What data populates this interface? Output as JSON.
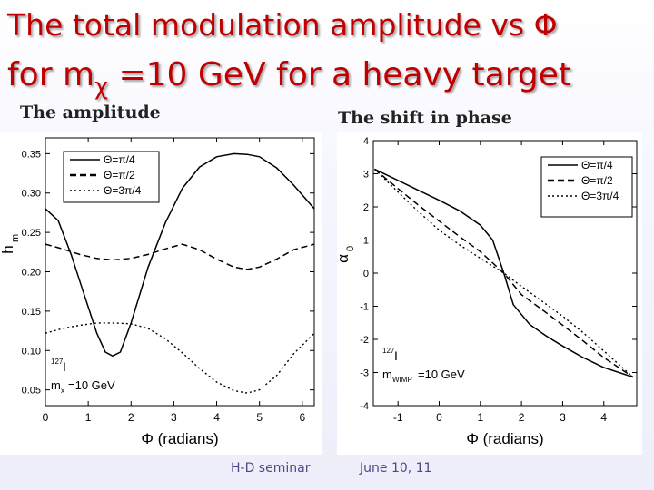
{
  "slide": {
    "title_line1": "The total modulation amplitude vs Φ",
    "title_line2_pre": "for  m",
    "title_line2_sub": "χ",
    "title_line2_post": " =10 GeV for a heavy target",
    "caption_left": "The amplitude",
    "caption_right": "The shift in phase",
    "footer_left": "H-D seminar",
    "footer_right": "June 10, 11",
    "colors": {
      "title": "#c00000",
      "curve": "#000000"
    }
  },
  "chart_data": [
    {
      "type": "line",
      "title": "The amplitude",
      "xlabel": "Φ (radians)",
      "ylabel": "h",
      "ylabel_sub": "m",
      "xlim": [
        0,
        6.28
      ],
      "ylim": [
        0.03,
        0.37
      ],
      "xticks": [
        0,
        1,
        2,
        3,
        4,
        5,
        6
      ],
      "yticks": [
        0.05,
        0.1,
        0.15,
        0.2,
        0.25,
        0.3,
        0.35
      ],
      "ytick_labels": [
        "0.05",
        "0.10",
        "0.15",
        "0.20",
        "0.25",
        "0.30",
        "0.35"
      ],
      "annotation_line1": "127",
      "annotation_line1_suffix": "I",
      "annotation_line2": "m",
      "annotation_line2_sub": "x",
      "annotation_line2_suffix": "=10 GeV",
      "legend": [
        "Θ=π/4",
        "Θ=π/2",
        "Θ=3π/4"
      ],
      "series": [
        {
          "name": "Θ=π/4",
          "style": "solid",
          "x": [
            0,
            0.3,
            0.6,
            0.9,
            1.2,
            1.4,
            1.571,
            1.75,
            2.0,
            2.4,
            2.8,
            3.2,
            3.6,
            4.0,
            4.4,
            4.712,
            5.0,
            5.4,
            5.8,
            6.283
          ],
          "y": [
            0.28,
            0.265,
            0.222,
            0.172,
            0.122,
            0.098,
            0.093,
            0.098,
            0.135,
            0.206,
            0.262,
            0.306,
            0.333,
            0.346,
            0.35,
            0.349,
            0.346,
            0.332,
            0.31,
            0.28
          ]
        },
        {
          "name": "Θ=π/2",
          "style": "dashed",
          "x": [
            0,
            0.4,
            0.8,
            1.2,
            1.571,
            2.0,
            2.4,
            2.8,
            3.2,
            3.6,
            4.0,
            4.4,
            4.712,
            5.0,
            5.4,
            5.8,
            6.283
          ],
          "y": [
            0.235,
            0.229,
            0.222,
            0.217,
            0.215,
            0.217,
            0.222,
            0.229,
            0.235,
            0.228,
            0.216,
            0.206,
            0.203,
            0.206,
            0.216,
            0.228,
            0.235
          ]
        },
        {
          "name": "Θ=3π/4",
          "style": "dotted",
          "x": [
            0,
            0.4,
            0.8,
            1.2,
            1.571,
            2.0,
            2.4,
            2.8,
            3.2,
            3.6,
            4.0,
            4.4,
            4.712,
            5.0,
            5.4,
            5.8,
            6.283
          ],
          "y": [
            0.122,
            0.128,
            0.132,
            0.135,
            0.135,
            0.134,
            0.128,
            0.115,
            0.097,
            0.077,
            0.06,
            0.049,
            0.046,
            0.05,
            0.068,
            0.096,
            0.122
          ]
        }
      ]
    },
    {
      "type": "line",
      "title": "The shift in phase",
      "xlabel": "Φ (radians)",
      "ylabel": "α",
      "ylabel_sub": "0",
      "xlim": [
        -1.6,
        4.8
      ],
      "ylim": [
        -4,
        4
      ],
      "xticks": [
        -1,
        0,
        1,
        2,
        3,
        4
      ],
      "yticks": [
        -4,
        -3,
        -2,
        -1,
        0,
        1,
        2,
        3,
        4
      ],
      "annotation_line1": "127",
      "annotation_line1_suffix": "I",
      "annotation_line2": "m",
      "annotation_line2_sub": "WIMP",
      "annotation_line2_suffix": "=10 GeV",
      "legend": [
        "Θ=π/4",
        "Θ=π/2",
        "Θ=3π/4"
      ],
      "series": [
        {
          "name": "Θ=π/4",
          "style": "solid",
          "x": [
            -1.57,
            -1.0,
            -0.5,
            0,
            0.5,
            1.0,
            1.3,
            1.571,
            1.8,
            2.2,
            2.6,
            3.0,
            3.5,
            4.0,
            4.71
          ],
          "y": [
            3.14,
            2.8,
            2.5,
            2.2,
            1.88,
            1.45,
            1.0,
            0.0,
            -0.95,
            -1.55,
            -1.9,
            -2.2,
            -2.55,
            -2.85,
            -3.14
          ]
        },
        {
          "name": "Θ=π/2",
          "style": "dashed",
          "x": [
            -1.57,
            -1.0,
            -0.5,
            0,
            0.5,
            1.0,
            1.571,
            2.0,
            2.5,
            3.0,
            3.5,
            4.0,
            4.71
          ],
          "y": [
            3.14,
            2.55,
            2.05,
            1.57,
            1.1,
            0.65,
            0.0,
            -0.65,
            -1.1,
            -1.57,
            -2.05,
            -2.55,
            -3.14
          ]
        },
        {
          "name": "Θ=3π/4",
          "style": "dotted",
          "x": [
            -1.57,
            -1.0,
            -0.5,
            0,
            0.5,
            1.0,
            1.571,
            2.0,
            2.5,
            3.0,
            3.5,
            4.0,
            4.71
          ],
          "y": [
            3.14,
            2.45,
            1.85,
            1.3,
            0.85,
            0.45,
            0.0,
            -0.4,
            -0.85,
            -1.3,
            -1.8,
            -2.35,
            -3.14
          ]
        }
      ]
    }
  ]
}
